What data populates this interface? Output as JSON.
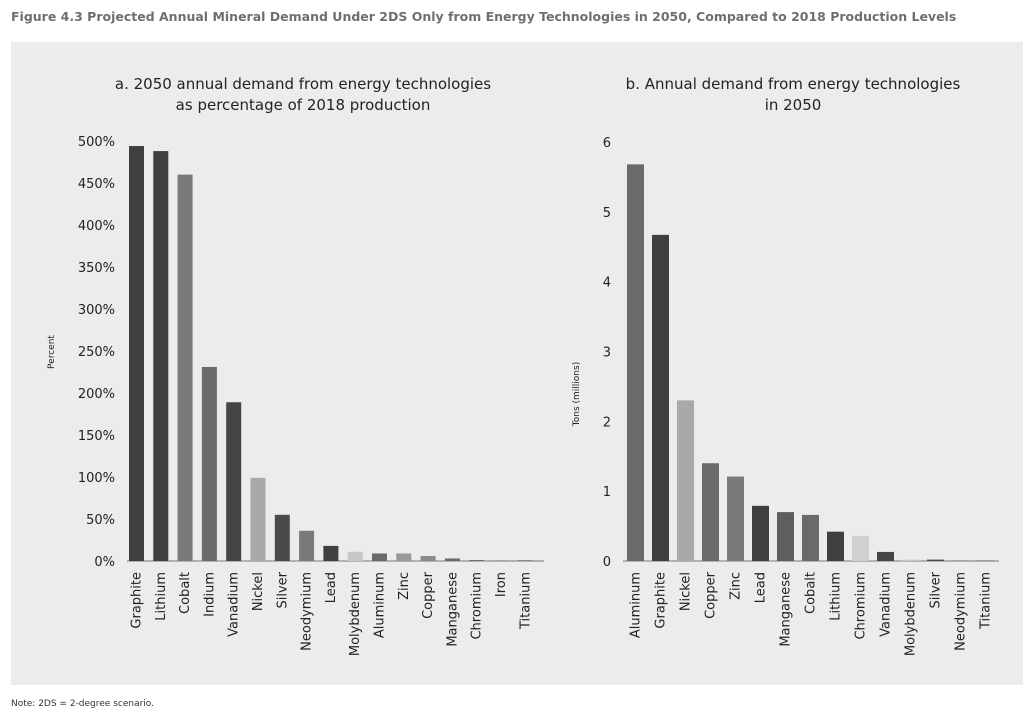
{
  "figure_title": "Figure 4.3 Projected Annual Mineral Demand Under 2DS Only from Energy Technologies in 2050, Compared to 2018 Production Levels",
  "note": "Note: 2DS = 2-degree scenario.",
  "chart_data": [
    {
      "type": "bar",
      "title": "a. 2050 annual demand from energy technologies",
      "title_line2": "as percentage of 2018 production",
      "xlabel": "",
      "ylabel": "Percent",
      "ylim": [
        0,
        500
      ],
      "yticks": [
        0,
        50,
        100,
        150,
        200,
        250,
        300,
        350,
        400,
        450,
        500
      ],
      "ytick_labels": [
        "0%",
        "50%",
        "100%",
        "150%",
        "200%",
        "250%",
        "300%",
        "350%",
        "400%",
        "450%",
        "500%"
      ],
      "grid": false,
      "categories": [
        "Graphite",
        "Lithium",
        "Cobalt",
        "Indium",
        "Vanadium",
        "Nickel",
        "Silver",
        "Neodymium",
        "Lead",
        "Molybdenum",
        "Aluminum",
        "Zinc",
        "Copper",
        "Manganese",
        "Chromium",
        "Iron",
        "Titanium"
      ],
      "values": [
        494,
        488,
        460,
        231,
        189,
        99,
        55,
        36,
        18,
        11,
        9,
        9,
        6,
        3,
        1,
        1,
        1
      ],
      "colors": [
        "#3f3f3f",
        "#3f3f3f",
        "#7a7a7a",
        "#6a6a6a",
        "#454545",
        "#a9a9a9",
        "#4a4a4a",
        "#7a7a7a",
        "#3f3f3f",
        "#c8c8c8",
        "#6a6a6a",
        "#999999",
        "#8a8a8a",
        "#6a6a6a",
        "#5a5a5a",
        "#999999",
        "#7a7a7a"
      ]
    },
    {
      "type": "bar",
      "title": "b. Annual demand from energy technologies",
      "title_line2": "in 2050",
      "xlabel": "",
      "ylabel": "Tons (millions)",
      "ylim": [
        0,
        6
      ],
      "yticks": [
        0,
        1,
        2,
        3,
        4,
        5,
        6
      ],
      "ytick_labels": [
        "0",
        "1",
        "2",
        "3",
        "4",
        "5",
        "6"
      ],
      "grid": false,
      "categories": [
        "Aluminum",
        "Graphite",
        "Nickel",
        "Copper",
        "Zinc",
        "Lead",
        "Manganese",
        "Cobalt",
        "Lithium",
        "Chromium",
        "Vanadium",
        "Molybdenum",
        "Silver",
        "Neodymium",
        "Titanium"
      ],
      "values": [
        5.68,
        4.67,
        2.3,
        1.4,
        1.21,
        0.79,
        0.7,
        0.66,
        0.42,
        0.36,
        0.13,
        0.02,
        0.02,
        0.01,
        0.01
      ],
      "colors": [
        "#6a6a6a",
        "#3f3f3f",
        "#a9a9a9",
        "#6a6a6a",
        "#7a7a7a",
        "#3f3f3f",
        "#5e5e5e",
        "#6a6a6a",
        "#3f3f3f",
        "#d0d0d0",
        "#454545",
        "#c8c8c8",
        "#4a4a4a",
        "#8a8a8a",
        "#7a7a7a"
      ]
    }
  ]
}
